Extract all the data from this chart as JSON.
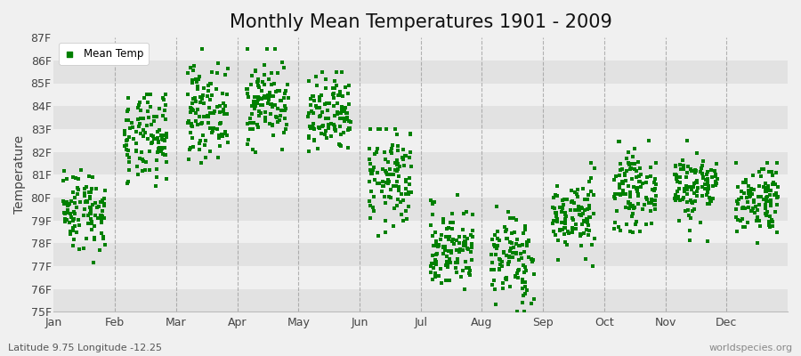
{
  "title": "Monthly Mean Temperatures 1901 - 2009",
  "ylabel": "Temperature",
  "subtitle_left": "Latitude 9.75 Longitude -12.25",
  "subtitle_right": "worldspecies.org",
  "legend_label": "Mean Temp",
  "dot_color": "#008000",
  "ylim": [
    75,
    87
  ],
  "ytick_labels": [
    "75F",
    "76F",
    "77F",
    "78F",
    "79F",
    "80F",
    "81F",
    "82F",
    "83F",
    "84F",
    "85F",
    "86F",
    "87F"
  ],
  "ytick_values": [
    75,
    76,
    77,
    78,
    79,
    80,
    81,
    82,
    83,
    84,
    85,
    86,
    87
  ],
  "months": [
    "Jan",
    "Feb",
    "Mar",
    "Apr",
    "May",
    "Jun",
    "Jul",
    "Aug",
    "Sep",
    "Oct",
    "Nov",
    "Dec"
  ],
  "month_means": [
    79.5,
    82.5,
    83.8,
    84.2,
    83.5,
    80.8,
    77.8,
    77.3,
    79.2,
    80.3,
    80.5,
    80.0
  ],
  "month_stds": [
    0.9,
    1.0,
    1.0,
    0.9,
    0.9,
    1.1,
    0.9,
    1.0,
    0.8,
    0.8,
    0.8,
    0.8
  ],
  "month_mins": [
    76.5,
    79.5,
    81.0,
    82.0,
    81.0,
    78.0,
    75.5,
    75.0,
    77.0,
    78.5,
    77.5,
    78.0
  ],
  "month_maxs": [
    81.5,
    84.5,
    86.5,
    86.5,
    85.5,
    83.0,
    81.5,
    80.5,
    81.5,
    82.5,
    82.5,
    81.5
  ],
  "n_years": 109,
  "background_color": "#f0f0f0",
  "band_color_light": "#f0f0f0",
  "band_color_dark": "#e2e2e2",
  "grid_color": "#888888",
  "title_fontsize": 15,
  "axis_fontsize": 10,
  "tick_fontsize": 9,
  "dot_size": 6,
  "seed": 42
}
